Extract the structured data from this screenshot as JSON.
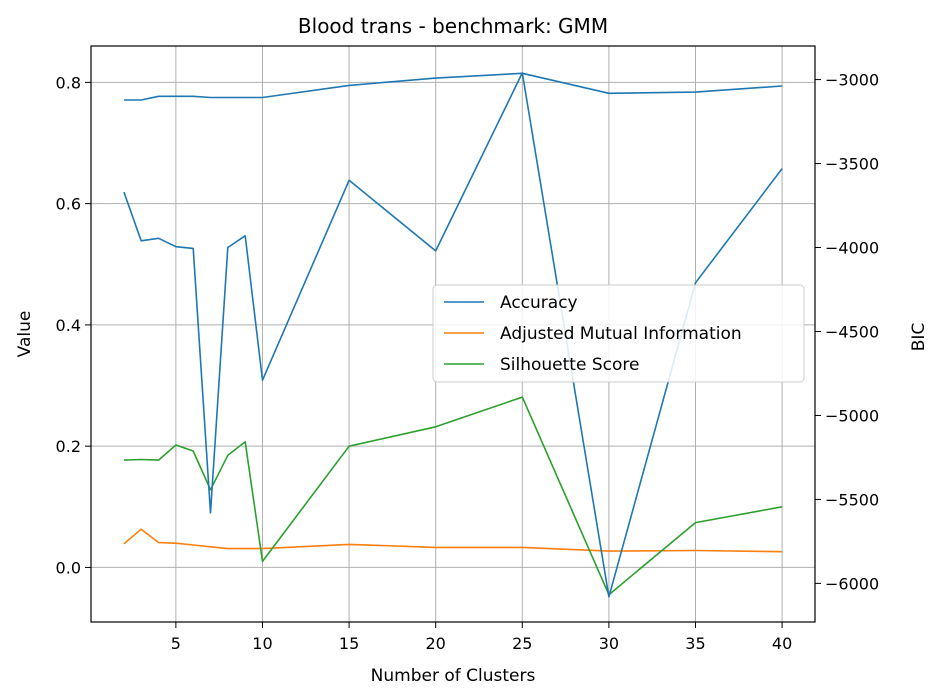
{
  "chart_data": {
    "type": "line",
    "title": "Blood trans - benchmark: GMM",
    "xlabel": "Number of Clusters",
    "ylabel": "Value",
    "ylabel_right": "BIC",
    "xlim": [
      0.1,
      41.9
    ],
    "ylim": [
      -0.09,
      0.86
    ],
    "ylim_right": [
      -6230,
      -2800
    ],
    "x_ticks": [
      5,
      10,
      15,
      20,
      25,
      30,
      35,
      40
    ],
    "y_ticks": [
      0.0,
      0.2,
      0.4,
      0.6,
      0.8
    ],
    "y_tick_labels": [
      "0.0",
      "0.2",
      "0.4",
      "0.6",
      "0.8"
    ],
    "y_right_ticks": [
      -6000,
      -5500,
      -5000,
      -4500,
      -4000,
      -3500,
      -3000
    ],
    "y_right_tick_labels": [
      "−6000",
      "−5500",
      "−5000",
      "−4500",
      "−4000",
      "−3500",
      "−3000"
    ],
    "grid": true,
    "legend_position": "center-right",
    "x": [
      2,
      3,
      4,
      5,
      6,
      7,
      8,
      9,
      10,
      15,
      20,
      25,
      30,
      35,
      40
    ],
    "series": [
      {
        "name": "Accuracy",
        "color": "#1f77b4",
        "axis": "left",
        "values": [
          0.771,
          0.771,
          0.777,
          0.777,
          0.777,
          0.775,
          0.775,
          0.775,
          0.775,
          0.795,
          0.807,
          0.815,
          0.782,
          0.784,
          0.794
        ]
      },
      {
        "name": "Adjusted Mutual Information",
        "color": "#ff7f0e",
        "axis": "left",
        "values": [
          0.039,
          0.063,
          0.041,
          0.04,
          0.037,
          0.034,
          0.031,
          0.031,
          0.031,
          0.038,
          0.033,
          0.033,
          0.027,
          0.028,
          0.026
        ]
      },
      {
        "name": "Silhouette Score",
        "color": "#2ca02c",
        "axis": "left",
        "values": [
          0.177,
          0.178,
          0.177,
          0.202,
          0.192,
          0.128,
          0.185,
          0.207,
          0.01,
          0.2,
          0.232,
          0.281,
          -0.045,
          0.074,
          0.1
        ]
      },
      {
        "color": "#1f77b4",
        "axis": "right",
        "values": [
          -3670,
          -3960,
          -3945,
          -3995,
          -4005,
          -5580,
          -4000,
          -3930,
          -4790,
          -3600,
          -4020,
          -2960,
          -6080,
          -4210,
          -3530
        ]
      }
    ]
  }
}
